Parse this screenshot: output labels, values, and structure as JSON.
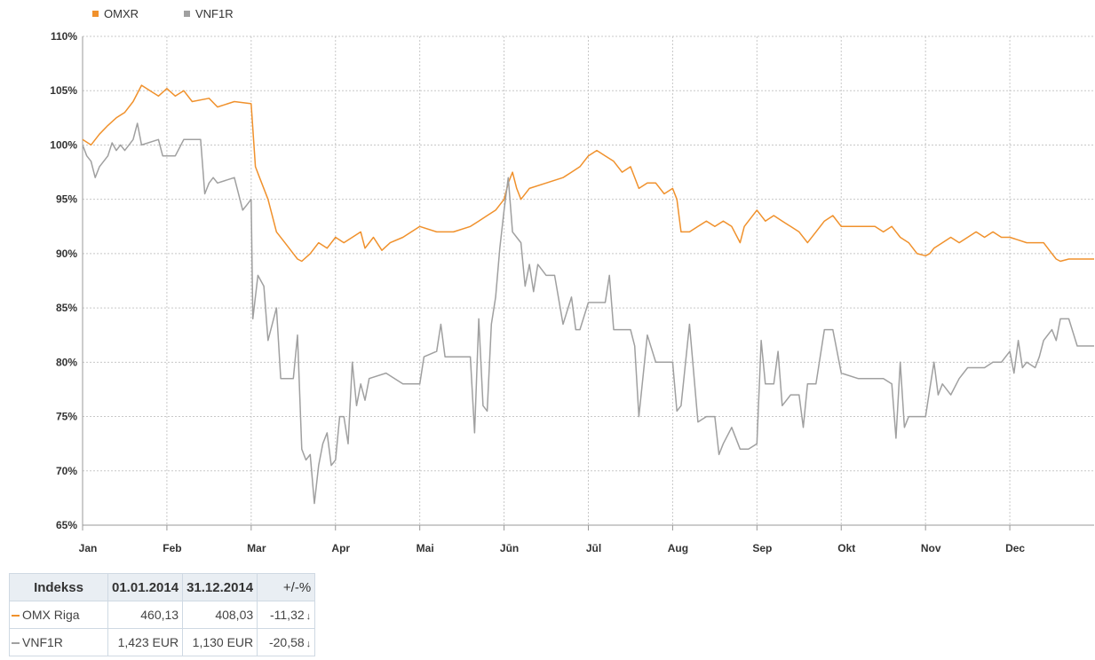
{
  "colors": {
    "omxr": "#f0912c",
    "vnf1r": "#a0a0a0",
    "negative": "#e8232a"
  },
  "legend": [
    {
      "label": "OMXR",
      "color": "#f0912c"
    },
    {
      "label": "VNF1R",
      "color": "#a0a0a0"
    }
  ],
  "chart_data": {
    "type": "line",
    "title": "",
    "xlabel": "",
    "ylabel": "",
    "ylim": [
      65,
      110
    ],
    "yticks": [
      65,
      70,
      75,
      80,
      85,
      90,
      95,
      100,
      105,
      110
    ],
    "ytick_labels": [
      "65%",
      "70%",
      "75%",
      "80%",
      "85%",
      "90%",
      "95%",
      "100%",
      "105%",
      "110%"
    ],
    "x_unit": "month index (0 = 1 Jan 2014)",
    "xlim": [
      0,
      12
    ],
    "xticks": [
      0,
      1,
      2,
      3,
      4,
      5,
      6,
      7,
      8,
      9,
      10,
      11
    ],
    "xtick_labels": [
      "Jan",
      "Feb",
      "Mar",
      "Apr",
      "Mai",
      "Jūn",
      "Jūl",
      "Aug",
      "Sep",
      "Okt",
      "Nov",
      "Dec"
    ],
    "grid": true,
    "legend_position": "top-left",
    "series": [
      {
        "name": "OMXR",
        "color": "#f0912c",
        "points": [
          [
            0,
            100.5
          ],
          [
            0.1,
            100
          ],
          [
            0.2,
            101
          ],
          [
            0.3,
            101.8
          ],
          [
            0.4,
            102.5
          ],
          [
            0.5,
            103
          ],
          [
            0.6,
            104
          ],
          [
            0.7,
            105.5
          ],
          [
            0.8,
            105
          ],
          [
            0.9,
            104.5
          ],
          [
            1.0,
            105.2
          ],
          [
            1.1,
            104.5
          ],
          [
            1.2,
            105
          ],
          [
            1.3,
            104
          ],
          [
            1.5,
            104.3
          ],
          [
            1.6,
            103.5
          ],
          [
            1.8,
            104
          ],
          [
            2.0,
            103.8
          ],
          [
            2.05,
            98
          ],
          [
            2.1,
            97
          ],
          [
            2.2,
            95
          ],
          [
            2.3,
            92
          ],
          [
            2.4,
            91
          ],
          [
            2.5,
            90
          ],
          [
            2.55,
            89.5
          ],
          [
            2.6,
            89.3
          ],
          [
            2.7,
            90
          ],
          [
            2.8,
            91
          ],
          [
            2.9,
            90.5
          ],
          [
            3.0,
            91.5
          ],
          [
            3.1,
            91
          ],
          [
            3.2,
            91.5
          ],
          [
            3.3,
            92
          ],
          [
            3.35,
            90.5
          ],
          [
            3.45,
            91.5
          ],
          [
            3.55,
            90.3
          ],
          [
            3.65,
            91
          ],
          [
            3.8,
            91.5
          ],
          [
            4.0,
            92.5
          ],
          [
            4.2,
            92
          ],
          [
            4.4,
            92
          ],
          [
            4.6,
            92.5
          ],
          [
            4.7,
            93
          ],
          [
            4.8,
            93.5
          ],
          [
            4.9,
            94
          ],
          [
            5.0,
            95
          ],
          [
            5.05,
            96.5
          ],
          [
            5.1,
            97.5
          ],
          [
            5.15,
            96
          ],
          [
            5.2,
            95
          ],
          [
            5.3,
            96
          ],
          [
            5.5,
            96.5
          ],
          [
            5.7,
            97
          ],
          [
            5.8,
            97.5
          ],
          [
            5.9,
            98
          ],
          [
            6.0,
            99
          ],
          [
            6.1,
            99.5
          ],
          [
            6.2,
            99
          ],
          [
            6.3,
            98.5
          ],
          [
            6.4,
            97.5
          ],
          [
            6.5,
            98
          ],
          [
            6.6,
            96
          ],
          [
            6.7,
            96.5
          ],
          [
            6.8,
            96.5
          ],
          [
            6.9,
            95.5
          ],
          [
            7.0,
            96
          ],
          [
            7.05,
            95
          ],
          [
            7.1,
            92
          ],
          [
            7.2,
            92
          ],
          [
            7.3,
            92.5
          ],
          [
            7.4,
            93
          ],
          [
            7.5,
            92.5
          ],
          [
            7.6,
            93
          ],
          [
            7.7,
            92.5
          ],
          [
            7.8,
            91
          ],
          [
            7.85,
            92.5
          ],
          [
            7.9,
            93
          ],
          [
            8.0,
            94
          ],
          [
            8.1,
            93
          ],
          [
            8.2,
            93.5
          ],
          [
            8.3,
            93
          ],
          [
            8.4,
            92.5
          ],
          [
            8.5,
            92
          ],
          [
            8.6,
            91
          ],
          [
            8.7,
            92
          ],
          [
            8.8,
            93
          ],
          [
            8.9,
            93.5
          ],
          [
            9.0,
            92.5
          ],
          [
            9.2,
            92.5
          ],
          [
            9.4,
            92.5
          ],
          [
            9.5,
            92
          ],
          [
            9.6,
            92.5
          ],
          [
            9.7,
            91.5
          ],
          [
            9.8,
            91
          ],
          [
            9.9,
            90
          ],
          [
            10.0,
            89.8
          ],
          [
            10.05,
            90
          ],
          [
            10.1,
            90.5
          ],
          [
            10.2,
            91
          ],
          [
            10.3,
            91.5
          ],
          [
            10.4,
            91
          ],
          [
            10.5,
            91.5
          ],
          [
            10.6,
            92
          ],
          [
            10.7,
            91.5
          ],
          [
            10.8,
            92
          ],
          [
            10.9,
            91.5
          ],
          [
            11.0,
            91.5
          ],
          [
            11.2,
            91
          ],
          [
            11.4,
            91
          ],
          [
            11.5,
            90
          ],
          [
            11.55,
            89.5
          ],
          [
            11.6,
            89.3
          ],
          [
            11.7,
            89.5
          ],
          [
            11.9,
            89.5
          ],
          [
            12.0,
            89.5
          ]
        ]
      },
      {
        "name": "VNF1R",
        "color": "#a0a0a0",
        "points": [
          [
            0,
            100
          ],
          [
            0.05,
            99
          ],
          [
            0.1,
            98.5
          ],
          [
            0.15,
            97
          ],
          [
            0.2,
            98
          ],
          [
            0.3,
            99
          ],
          [
            0.35,
            100.2
          ],
          [
            0.4,
            99.5
          ],
          [
            0.45,
            100
          ],
          [
            0.5,
            99.5
          ],
          [
            0.6,
            100.5
          ],
          [
            0.65,
            102
          ],
          [
            0.7,
            100
          ],
          [
            0.9,
            100.5
          ],
          [
            0.95,
            99
          ],
          [
            1.1,
            99
          ],
          [
            1.2,
            100.5
          ],
          [
            1.4,
            100.5
          ],
          [
            1.45,
            95.5
          ],
          [
            1.5,
            96.5
          ],
          [
            1.55,
            97
          ],
          [
            1.6,
            96.5
          ],
          [
            1.8,
            97
          ],
          [
            1.9,
            94
          ],
          [
            1.95,
            94.5
          ],
          [
            2.0,
            95
          ],
          [
            2.02,
            84
          ],
          [
            2.08,
            88
          ],
          [
            2.15,
            87
          ],
          [
            2.2,
            82
          ],
          [
            2.3,
            85
          ],
          [
            2.35,
            78.5
          ],
          [
            2.5,
            78.5
          ],
          [
            2.55,
            82.5
          ],
          [
            2.6,
            72
          ],
          [
            2.65,
            71
          ],
          [
            2.7,
            71.5
          ],
          [
            2.75,
            67
          ],
          [
            2.8,
            70.5
          ],
          [
            2.85,
            72.5
          ],
          [
            2.9,
            73.5
          ],
          [
            2.95,
            70.5
          ],
          [
            3.0,
            71
          ],
          [
            3.05,
            75
          ],
          [
            3.1,
            75
          ],
          [
            3.15,
            72.5
          ],
          [
            3.2,
            80
          ],
          [
            3.25,
            76
          ],
          [
            3.3,
            78
          ],
          [
            3.35,
            76.5
          ],
          [
            3.4,
            78.5
          ],
          [
            3.6,
            79
          ],
          [
            3.8,
            78
          ],
          [
            4.0,
            78
          ],
          [
            4.05,
            80.5
          ],
          [
            4.2,
            81
          ],
          [
            4.25,
            83.5
          ],
          [
            4.3,
            80.5
          ],
          [
            4.5,
            80.5
          ],
          [
            4.6,
            80.5
          ],
          [
            4.65,
            73.5
          ],
          [
            4.7,
            84
          ],
          [
            4.75,
            76
          ],
          [
            4.8,
            75.5
          ],
          [
            4.85,
            83.5
          ],
          [
            4.9,
            86
          ],
          [
            4.95,
            90.5
          ],
          [
            5.0,
            94
          ],
          [
            5.05,
            97
          ],
          [
            5.1,
            92
          ],
          [
            5.15,
            91.5
          ],
          [
            5.2,
            91
          ],
          [
            5.25,
            87
          ],
          [
            5.3,
            89
          ],
          [
            5.35,
            86.5
          ],
          [
            5.4,
            89
          ],
          [
            5.5,
            88
          ],
          [
            5.6,
            88
          ],
          [
            5.7,
            83.5
          ],
          [
            5.8,
            86
          ],
          [
            5.85,
            83
          ],
          [
            5.9,
            83
          ],
          [
            6.0,
            85.5
          ],
          [
            6.1,
            85.5
          ],
          [
            6.2,
            85.5
          ],
          [
            6.25,
            88
          ],
          [
            6.3,
            83
          ],
          [
            6.5,
            83
          ],
          [
            6.55,
            81.5
          ],
          [
            6.6,
            75
          ],
          [
            6.7,
            82.5
          ],
          [
            6.8,
            80
          ],
          [
            6.9,
            80
          ],
          [
            7.0,
            80
          ],
          [
            7.05,
            75.5
          ],
          [
            7.1,
            76
          ],
          [
            7.2,
            83.5
          ],
          [
            7.3,
            74.5
          ],
          [
            7.4,
            75
          ],
          [
            7.5,
            75
          ],
          [
            7.55,
            71.5
          ],
          [
            7.6,
            72.5
          ],
          [
            7.7,
            74
          ],
          [
            7.8,
            72
          ],
          [
            7.9,
            72
          ],
          [
            8.0,
            72.5
          ],
          [
            8.05,
            82
          ],
          [
            8.1,
            78
          ],
          [
            8.2,
            78
          ],
          [
            8.25,
            81
          ],
          [
            8.3,
            76
          ],
          [
            8.4,
            77
          ],
          [
            8.5,
            77
          ],
          [
            8.55,
            74
          ],
          [
            8.6,
            78
          ],
          [
            8.7,
            78
          ],
          [
            8.8,
            83
          ],
          [
            8.9,
            83
          ],
          [
            9.0,
            79
          ],
          [
            9.2,
            78.5
          ],
          [
            9.4,
            78.5
          ],
          [
            9.5,
            78.5
          ],
          [
            9.6,
            78
          ],
          [
            9.65,
            73
          ],
          [
            9.7,
            80
          ],
          [
            9.75,
            74
          ],
          [
            9.8,
            75
          ],
          [
            9.9,
            75
          ],
          [
            10.0,
            75
          ],
          [
            10.05,
            77.5
          ],
          [
            10.1,
            80
          ],
          [
            10.15,
            77
          ],
          [
            10.2,
            78
          ],
          [
            10.3,
            77
          ],
          [
            10.4,
            78.5
          ],
          [
            10.5,
            79.5
          ],
          [
            10.6,
            79.5
          ],
          [
            10.7,
            79.5
          ],
          [
            10.8,
            80
          ],
          [
            10.9,
            80
          ],
          [
            11.0,
            81
          ],
          [
            11.05,
            79
          ],
          [
            11.1,
            82
          ],
          [
            11.15,
            79.5
          ],
          [
            11.2,
            80
          ],
          [
            11.3,
            79.5
          ],
          [
            11.35,
            80.5
          ],
          [
            11.4,
            82
          ],
          [
            11.5,
            83
          ],
          [
            11.55,
            82
          ],
          [
            11.6,
            84
          ],
          [
            11.7,
            84
          ],
          [
            11.8,
            81.5
          ],
          [
            12.0,
            81.5
          ]
        ]
      }
    ]
  },
  "table": {
    "headers": [
      "Indekss",
      "01.01.2014",
      "31.12.2014",
      "+/-%"
    ],
    "rows": [
      {
        "name": "OMX Riga",
        "start": "460,13",
        "end": "408,03",
        "change": "-11,32",
        "color": "#f0912c"
      },
      {
        "name": "VNF1R",
        "start": "1,423 EUR",
        "end": "1,130 EUR",
        "change": "-20,58",
        "color": "#a0a0a0"
      }
    ]
  }
}
